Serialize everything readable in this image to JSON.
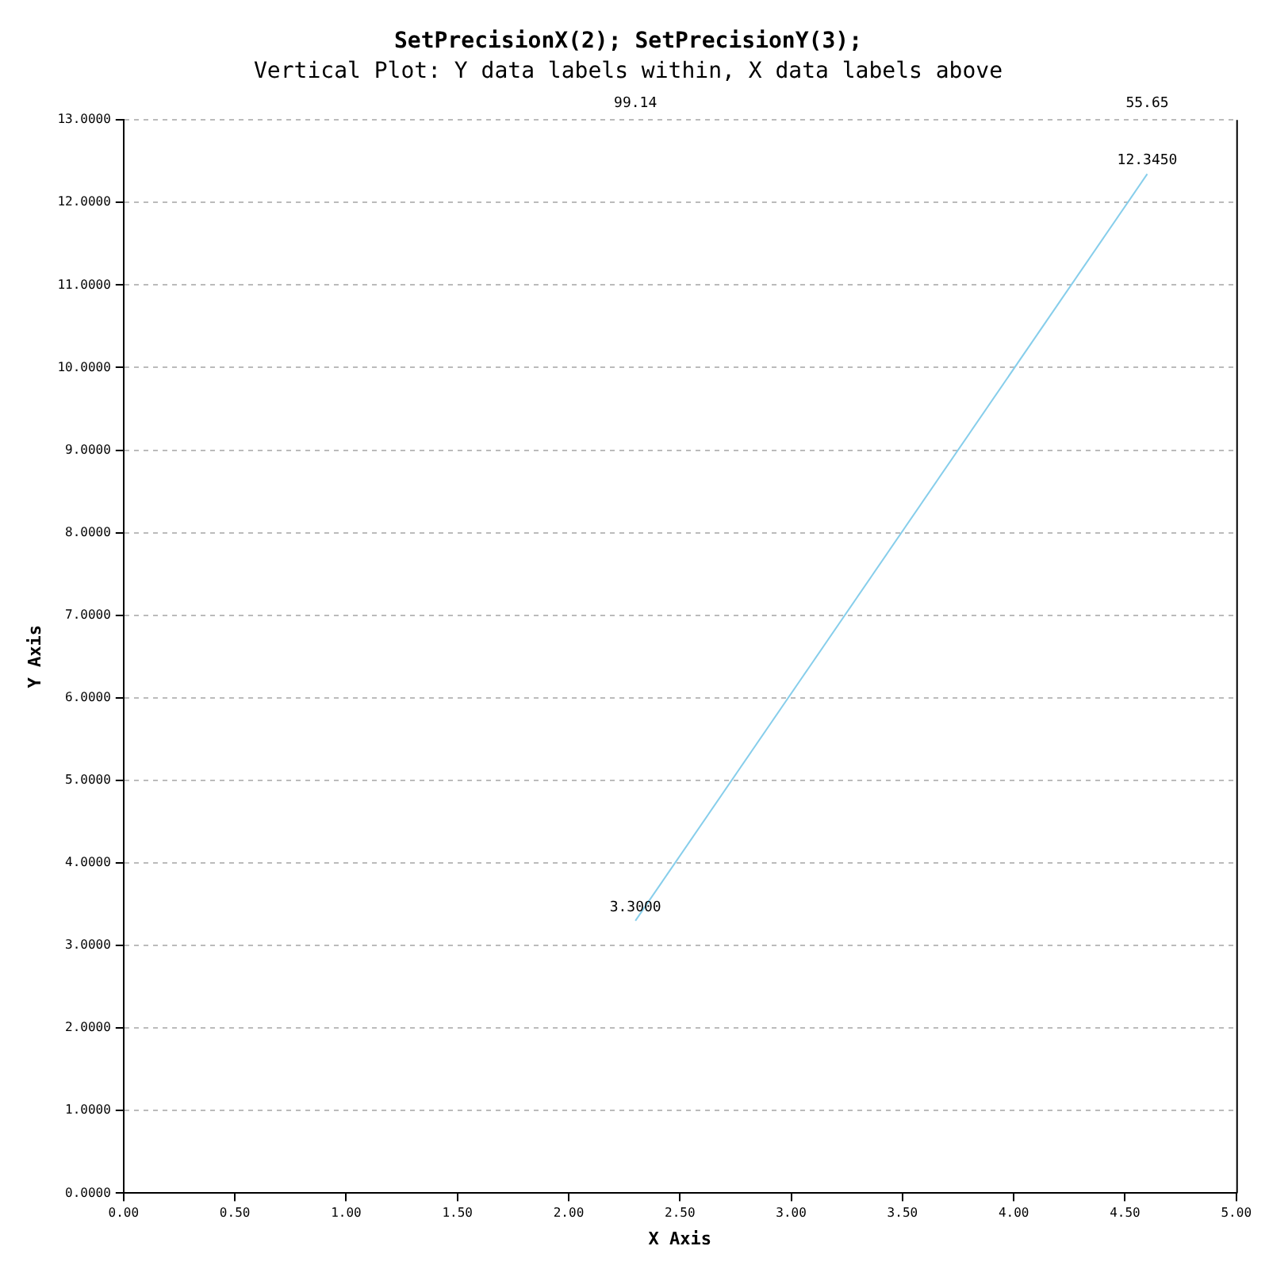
{
  "chart_data": {
    "type": "line",
    "title": "SetPrecisionX(2); SetPrecisionY(3);",
    "subtitle": "Vertical Plot: Y data labels within, X data labels above",
    "xlabel": "X Axis",
    "ylabel": "Y Axis",
    "x": [
      2.3,
      4.6
    ],
    "series": [
      {
        "color": "#87ceeb",
        "values": [
          3.3,
          12.345
        ],
        "value_labels": [
          "3.3000",
          "12.3450"
        ]
      }
    ],
    "annotations": [
      "99.14",
      "55.65"
    ],
    "xlim": [
      0,
      5
    ],
    "ylim": [
      0,
      13
    ],
    "xticks": [
      {
        "value": 0,
        "label": "0.00"
      },
      {
        "value": 0.5,
        "label": "0.50"
      },
      {
        "value": 1,
        "label": "1.00"
      },
      {
        "value": 1.5,
        "label": "1.50"
      },
      {
        "value": 2,
        "label": "2.00"
      },
      {
        "value": 2.5,
        "label": "2.50"
      },
      {
        "value": 3,
        "label": "3.00"
      },
      {
        "value": 3.5,
        "label": "3.50"
      },
      {
        "value": 4,
        "label": "4.00"
      },
      {
        "value": 4.5,
        "label": "4.50"
      },
      {
        "value": 5,
        "label": "5.00"
      }
    ],
    "yticks": [
      {
        "value": 0,
        "label": "0.0000"
      },
      {
        "value": 1,
        "label": "1.0000"
      },
      {
        "value": 2,
        "label": "2.0000"
      },
      {
        "value": 3,
        "label": "3.0000"
      },
      {
        "value": 4,
        "label": "4.0000"
      },
      {
        "value": 5,
        "label": "5.0000"
      },
      {
        "value": 6,
        "label": "6.0000"
      },
      {
        "value": 7,
        "label": "7.0000"
      },
      {
        "value": 8,
        "label": "8.0000"
      },
      {
        "value": 9,
        "label": "9.0000"
      },
      {
        "value": 10,
        "label": "10.0000"
      },
      {
        "value": 11,
        "label": "11.0000"
      },
      {
        "value": 12,
        "label": "12.0000"
      },
      {
        "value": 13,
        "label": "13.0000"
      }
    ],
    "grid": "y",
    "marker": "none",
    "line_style": "solid"
  }
}
